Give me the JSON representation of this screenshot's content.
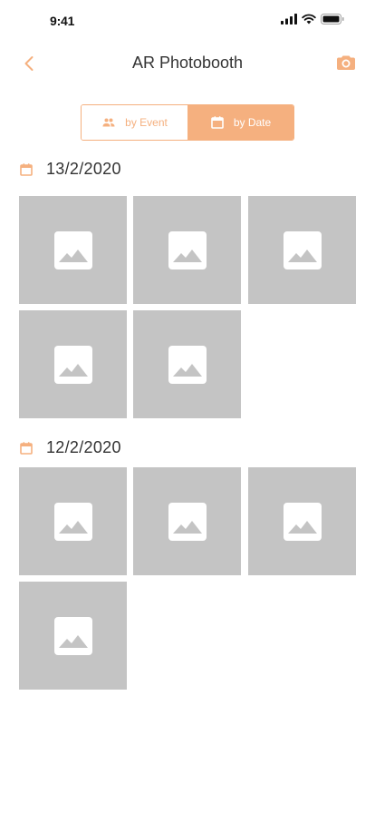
{
  "status_bar": {
    "time": "9:41"
  },
  "nav": {
    "title": "AR Photobooth"
  },
  "segment": {
    "by_event_label": "by Event",
    "by_date_label": "by Date",
    "active": "by Date"
  },
  "colors": {
    "accent": "#f5b07f",
    "placeholder": "#c4c4c4"
  },
  "sections": [
    {
      "date": "13/2/2020",
      "photo_count": 5
    },
    {
      "date": "12/2/2020",
      "photo_count": 4
    }
  ],
  "icons": {
    "back": "chevron-left-icon",
    "camera": "camera-icon",
    "by_event": "people-icon",
    "by_date": "calendar-icon",
    "section": "calendar-icon",
    "thumbnail": "image-placeholder-icon"
  }
}
